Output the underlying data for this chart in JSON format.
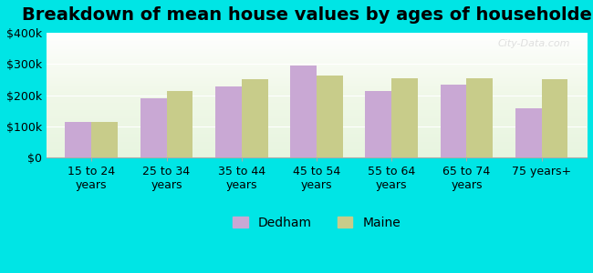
{
  "title": "Breakdown of mean house values by ages of householders",
  "categories": [
    "15 to 24\nyears",
    "25 to 34\nyears",
    "35 to 44\nyears",
    "45 to 54\nyears",
    "55 to 64\nyears",
    "65 to 74\nyears",
    "75 years+"
  ],
  "dedham_values": [
    115000,
    190000,
    228000,
    295000,
    213000,
    235000,
    158000
  ],
  "maine_values": [
    115000,
    213000,
    252000,
    263000,
    253000,
    253000,
    250000
  ],
  "dedham_color": "#c9a8d4",
  "maine_color": "#c8cc8a",
  "background_color": "#00e5e5",
  "plot_bg_start": "#e8f5e0",
  "ylim": [
    0,
    400000
  ],
  "yticks": [
    0,
    100000,
    200000,
    300000,
    400000
  ],
  "ytick_labels": [
    "$0",
    "$100k",
    "$200k",
    "$300k",
    "$400k"
  ],
  "legend_labels": [
    "Dedham",
    "Maine"
  ],
  "watermark": "City-Data.com",
  "title_fontsize": 14,
  "tick_fontsize": 9,
  "legend_fontsize": 10
}
